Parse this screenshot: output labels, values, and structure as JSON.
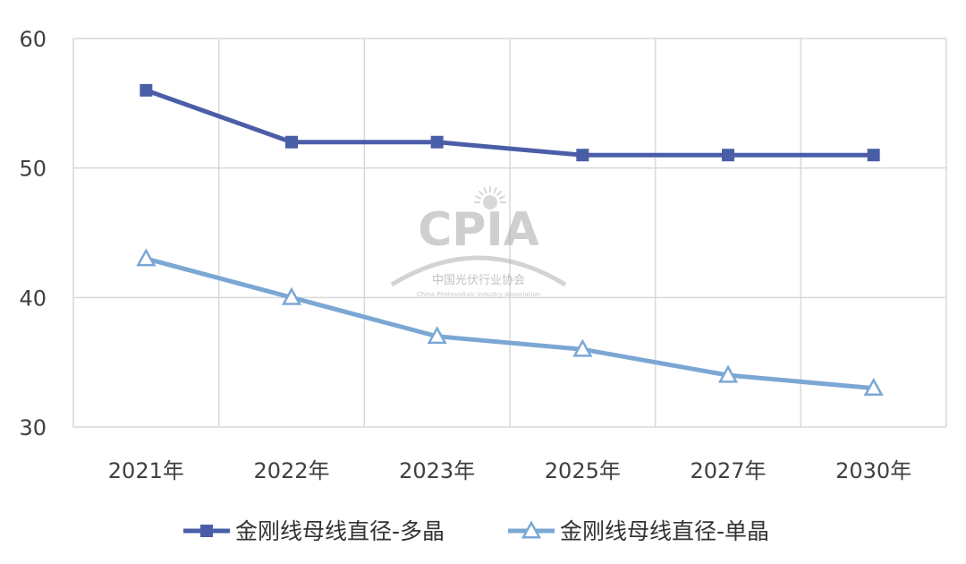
{
  "chart_data": {
    "type": "line",
    "categories": [
      "2021年",
      "2022年",
      "2023年",
      "2025年",
      "2027年",
      "2030年"
    ],
    "series": [
      {
        "name": "金刚线母线直径-多晶",
        "values": [
          56,
          52,
          52,
          51,
          51,
          51
        ],
        "color": "#4A5EA8",
        "marker": "square"
      },
      {
        "name": "金刚线母线直径-单晶",
        "values": [
          43,
          40,
          37,
          36,
          34,
          33
        ],
        "color": "#7BA7D4",
        "marker": "triangle"
      }
    ],
    "ylim": [
      30,
      60
    ],
    "yticks": [
      30,
      40,
      50,
      60
    ],
    "grid": true,
    "legend_position": "bottom",
    "title": "",
    "xlabel": "",
    "ylabel": ""
  },
  "watermark": {
    "logo": "CPIA",
    "name_cn": "中国光伏行业协会",
    "name_en": "China Photovoltaic Industry Association"
  }
}
